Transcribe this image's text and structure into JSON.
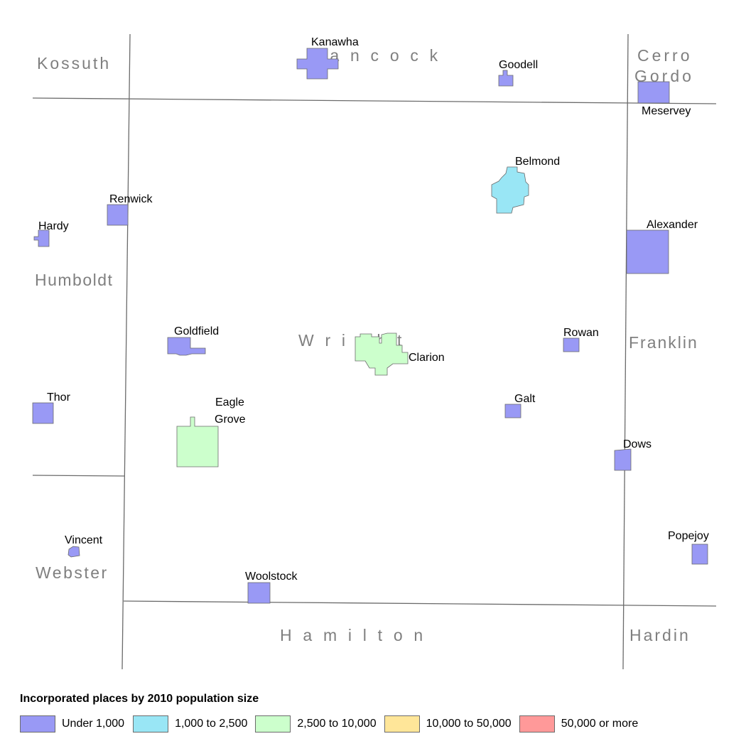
{
  "colors": {
    "under_1000": "#9999f5",
    "1000_to_2500": "#99e6f5",
    "2500_to_10000": "#ccffcc",
    "10000_to_50000": "#ffe699",
    "50000_plus": "#ff9999",
    "boundary": "#6b6b6b",
    "county_label": "#7f7f7f"
  },
  "counties": {
    "kossuth": "Kossuth",
    "hancock": "H  a  n  c  o  c  k",
    "cerro_gordo_1": "Cerro",
    "cerro_gordo_2": "Gordo",
    "humboldt": "Humboldt",
    "wright": "W  r  i  g  h  t",
    "franklin": "Franklin",
    "webster": "Webster",
    "hamilton": "H  a  m  i  l  t  o  n",
    "hardin": "Hardin"
  },
  "places": {
    "kanawha": "Kanawha",
    "goodell": "Goodell",
    "meservey": "Meservey",
    "belmond": "Belmond",
    "renwick": "Renwick",
    "hardy": "Hardy",
    "alexander": "Alexander",
    "goldfield": "Goldfield",
    "clarion": "Clarion",
    "rowan": "Rowan",
    "thor": "Thor",
    "eagle_grove_1": "Eagle",
    "eagle_grove_2": "Grove",
    "galt": "Galt",
    "dows": "Dows",
    "vincent": "Vincent",
    "popejoy": "Popejoy",
    "woolstock": "Woolstock"
  },
  "legend": {
    "title": "Incorporated places by 2010 population size",
    "items": [
      {
        "label": "Under 1,000",
        "color": "#9999f5"
      },
      {
        "label": "1,000 to 2,500",
        "color": "#99e6f5"
      },
      {
        "label": "2,500 to 10,000",
        "color": "#ccffcc"
      },
      {
        "label": "10,000 to 50,000",
        "color": "#ffe699"
      },
      {
        "label": "50,000 or more",
        "color": "#ff9999"
      }
    ]
  }
}
